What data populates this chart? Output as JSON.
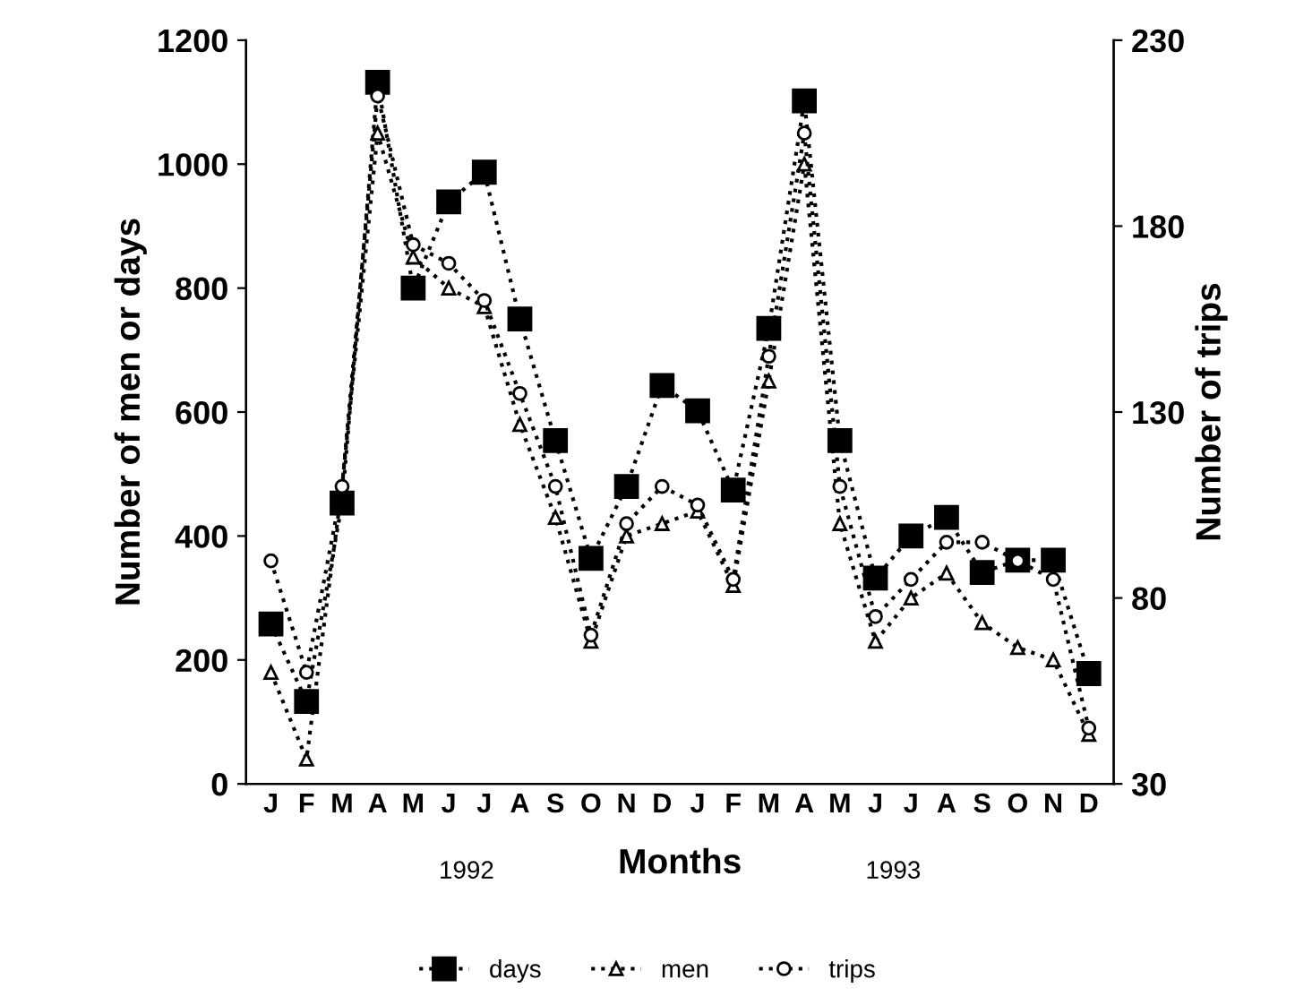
{
  "chart_data": {
    "type": "line",
    "xlabel": "Months",
    "ylabel": "Number of men or days",
    "y2label": "Number of trips",
    "categories": [
      "J",
      "F",
      "M",
      "A",
      "M",
      "J",
      "J",
      "A",
      "S",
      "O",
      "N",
      "D",
      "J",
      "F",
      "M",
      "A",
      "M",
      "J",
      "J",
      "A",
      "S",
      "O",
      "N",
      "D"
    ],
    "series": [
      {
        "name": "days",
        "color": "#000000",
        "marker": "square",
        "values": [
          258,
          133,
          453,
          1132,
          800,
          939,
          987,
          750,
          554,
          364,
          480,
          643,
          602,
          474,
          735,
          1102,
          554,
          332,
          400,
          430,
          341,
          361,
          361,
          178
        ]
      },
      {
        "name": "men",
        "color": "#000000",
        "marker": "triangle",
        "values": [
          180,
          40,
          480,
          1050,
          850,
          800,
          770,
          580,
          430,
          230,
          400,
          420,
          440,
          320,
          650,
          1000,
          420,
          230,
          300,
          340,
          260,
          220,
          200,
          80
        ]
      },
      {
        "name": "trips",
        "color": "#000000",
        "marker": "circle",
        "axis": "y2",
        "values": [
          90,
          60,
          110,
          215,
          175,
          170,
          160,
          135,
          110,
          70,
          100,
          110,
          105,
          85,
          145,
          205,
          110,
          75,
          85,
          95,
          95,
          90,
          85,
          45
        ]
      }
    ],
    "ylim": [
      0,
      1200
    ],
    "yticks": [
      0,
      200,
      400,
      600,
      800,
      1000,
      1200
    ],
    "y2lim": [
      30,
      230
    ],
    "y2ticks": [
      30,
      80,
      130,
      180,
      230
    ],
    "annotations": [
      "1992",
      "1993"
    ],
    "line_style": "dotted",
    "grid": false,
    "legend": "bottom"
  }
}
